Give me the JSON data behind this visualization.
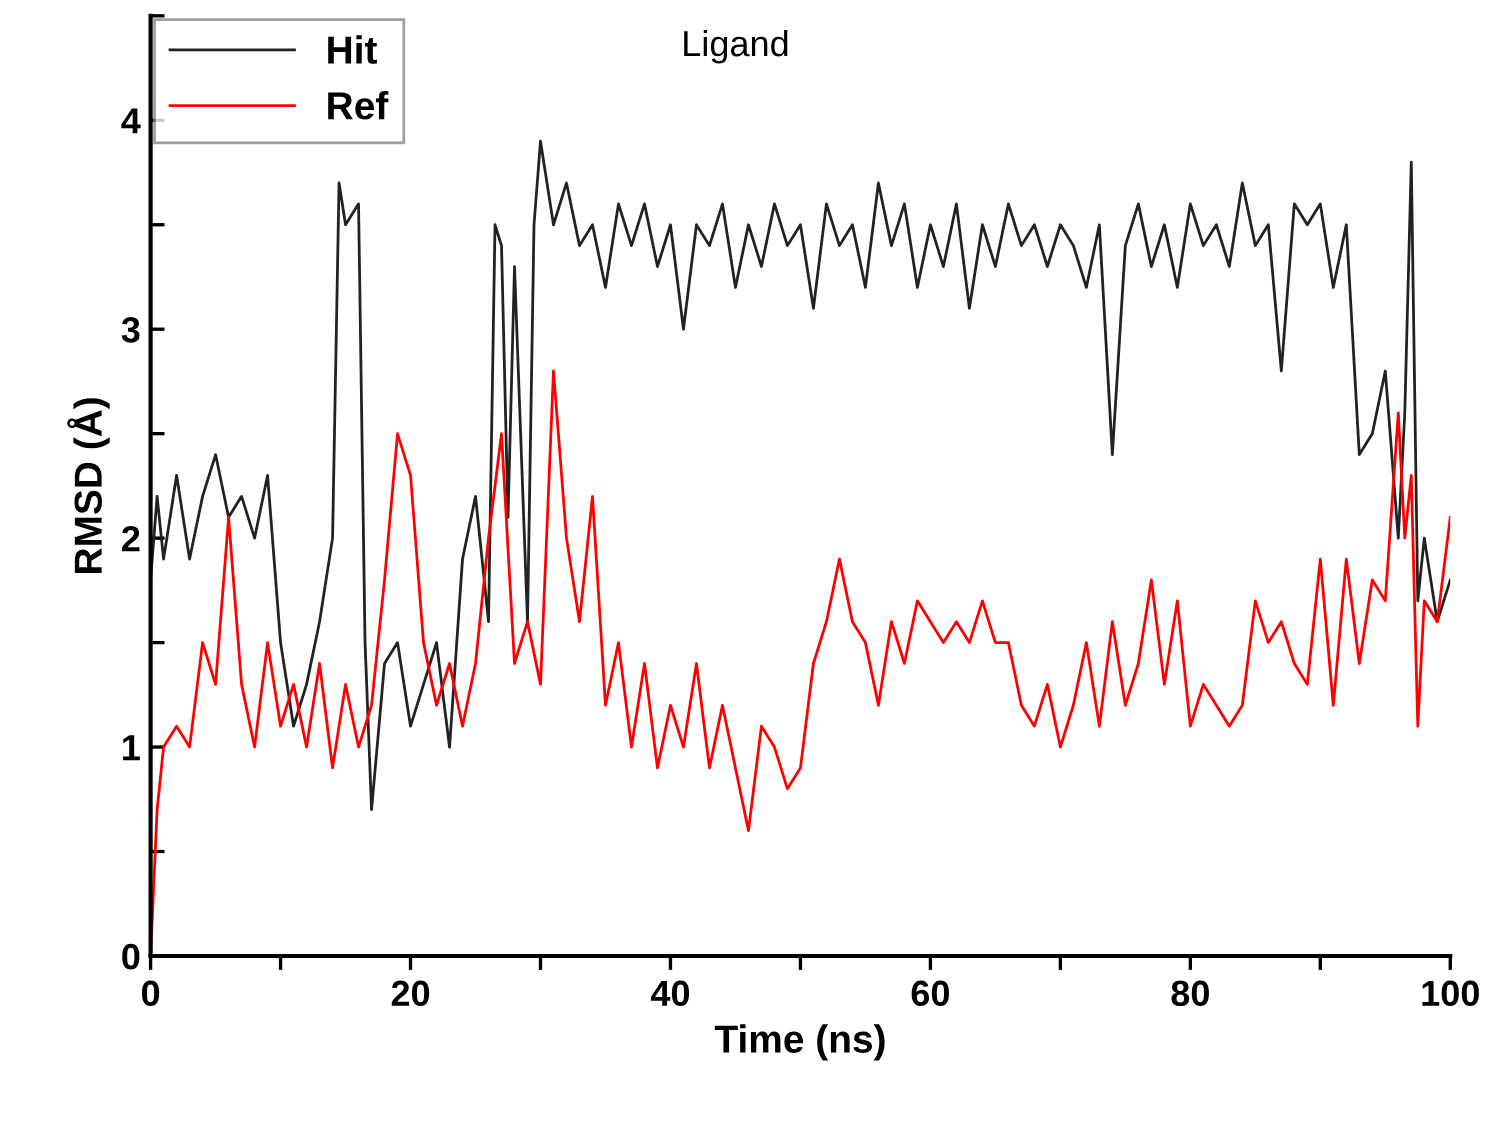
{
  "chart_data": {
    "type": "line",
    "title": "Ligand",
    "xlabel": "Time (ns)",
    "ylabel": "RMSD (Å)",
    "xlim": [
      0,
      100
    ],
    "ylim": [
      0,
      4.5
    ],
    "xticks": [
      0,
      {
        "value": 10,
        "label": null
      },
      20,
      {
        "value": 30,
        "label": null
      },
      40,
      {
        "value": 50,
        "label": null
      },
      60,
      {
        "value": 70,
        "label": null
      },
      80,
      {
        "value": 90,
        "label": null
      },
      100
    ],
    "yticks": [
      0,
      {
        "value": 0.5,
        "label": null
      },
      1,
      {
        "value": 1.5,
        "label": null
      },
      2,
      {
        "value": 2.5,
        "label": null
      },
      3,
      {
        "value": 3.5,
        "label": null
      },
      4,
      {
        "value": 4.5,
        "label": null
      }
    ],
    "grid": false,
    "legend": "top left",
    "marker": "none",
    "line_style": "solid",
    "series": [
      {
        "name": "Hit",
        "color": "#222222",
        "x": [
          0,
          0.5,
          1,
          2,
          3,
          4,
          5,
          6,
          7,
          8,
          9,
          10,
          11,
          12,
          13,
          14,
          14.5,
          15,
          16,
          16.5,
          17,
          18,
          19,
          20,
          21,
          22,
          23,
          24,
          25,
          26,
          26.5,
          27,
          27.5,
          28,
          29,
          29.5,
          30,
          31,
          32,
          33,
          34,
          35,
          36,
          37,
          38,
          39,
          40,
          41,
          42,
          43,
          44,
          45,
          46,
          47,
          48,
          49,
          50,
          51,
          52,
          53,
          54,
          55,
          56,
          57,
          58,
          59,
          60,
          61,
          62,
          63,
          64,
          65,
          66,
          67,
          68,
          69,
          70,
          71,
          72,
          73,
          74,
          75,
          76,
          77,
          78,
          79,
          80,
          81,
          82,
          83,
          84,
          85,
          86,
          87,
          88,
          89,
          90,
          91,
          92,
          93,
          94,
          95,
          96,
          96.5,
          97,
          97.5,
          98,
          99,
          100
        ],
        "values": [
          1.8,
          2.2,
          1.9,
          2.3,
          1.9,
          2.2,
          2.4,
          2.1,
          2.2,
          2.0,
          2.3,
          1.5,
          1.1,
          1.3,
          1.6,
          2.0,
          3.7,
          3.5,
          3.6,
          1.5,
          0.7,
          1.4,
          1.5,
          1.1,
          1.3,
          1.5,
          1.0,
          1.9,
          2.2,
          1.6,
          3.5,
          3.4,
          2.1,
          3.3,
          1.6,
          3.5,
          3.9,
          3.5,
          3.7,
          3.4,
          3.5,
          3.2,
          3.6,
          3.4,
          3.6,
          3.3,
          3.5,
          3.0,
          3.5,
          3.4,
          3.6,
          3.2,
          3.5,
          3.3,
          3.6,
          3.4,
          3.5,
          3.1,
          3.6,
          3.4,
          3.5,
          3.2,
          3.7,
          3.4,
          3.6,
          3.2,
          3.5,
          3.3,
          3.6,
          3.1,
          3.5,
          3.3,
          3.6,
          3.4,
          3.5,
          3.3,
          3.5,
          3.4,
          3.2,
          3.5,
          2.4,
          3.4,
          3.6,
          3.3,
          3.5,
          3.2,
          3.6,
          3.4,
          3.5,
          3.3,
          3.7,
          3.4,
          3.5,
          2.8,
          3.6,
          3.5,
          3.6,
          3.2,
          3.5,
          2.4,
          2.5,
          2.8,
          2.0,
          2.6,
          3.8,
          1.7,
          2.0,
          1.6,
          1.8
        ]
      },
      {
        "name": "Ref",
        "color": "#ff0000",
        "x": [
          0,
          0.5,
          1,
          2,
          3,
          4,
          5,
          6,
          7,
          8,
          9,
          10,
          11,
          12,
          13,
          14,
          15,
          16,
          17,
          18,
          19,
          20,
          21,
          22,
          23,
          24,
          25,
          26,
          27,
          28,
          29,
          30,
          31,
          32,
          33,
          34,
          35,
          36,
          37,
          38,
          39,
          40,
          41,
          42,
          43,
          44,
          45,
          46,
          47,
          48,
          49,
          50,
          51,
          52,
          53,
          54,
          55,
          56,
          57,
          58,
          59,
          60,
          61,
          62,
          63,
          64,
          65,
          66,
          67,
          68,
          69,
          70,
          71,
          72,
          73,
          74,
          75,
          76,
          77,
          78,
          79,
          80,
          81,
          82,
          83,
          84,
          85,
          86,
          87,
          88,
          89,
          90,
          91,
          92,
          93,
          94,
          95,
          96,
          96.5,
          97,
          97.5,
          98,
          99,
          100
        ],
        "values": [
          0,
          0.7,
          1.0,
          1.1,
          1.0,
          1.5,
          1.3,
          2.1,
          1.3,
          1.0,
          1.5,
          1.1,
          1.3,
          1.0,
          1.4,
          0.9,
          1.3,
          1.0,
          1.2,
          1.8,
          2.5,
          2.3,
          1.5,
          1.2,
          1.4,
          1.1,
          1.4,
          2.0,
          2.5,
          1.4,
          1.6,
          1.3,
          2.8,
          2.0,
          1.6,
          2.2,
          1.2,
          1.5,
          1.0,
          1.4,
          0.9,
          1.2,
          1.0,
          1.4,
          0.9,
          1.2,
          0.9,
          0.6,
          1.1,
          1.0,
          0.8,
          0.9,
          1.4,
          1.6,
          1.9,
          1.6,
          1.5,
          1.2,
          1.6,
          1.4,
          1.7,
          1.6,
          1.5,
          1.6,
          1.5,
          1.7,
          1.5,
          1.5,
          1.2,
          1.1,
          1.3,
          1.0,
          1.2,
          1.5,
          1.1,
          1.6,
          1.2,
          1.4,
          1.8,
          1.3,
          1.7,
          1.1,
          1.3,
          1.2,
          1.1,
          1.2,
          1.7,
          1.5,
          1.6,
          1.4,
          1.3,
          1.9,
          1.2,
          1.9,
          1.4,
          1.8,
          1.7,
          2.6,
          2.0,
          2.3,
          1.1,
          1.7,
          1.6,
          2.1
        ]
      }
    ]
  }
}
